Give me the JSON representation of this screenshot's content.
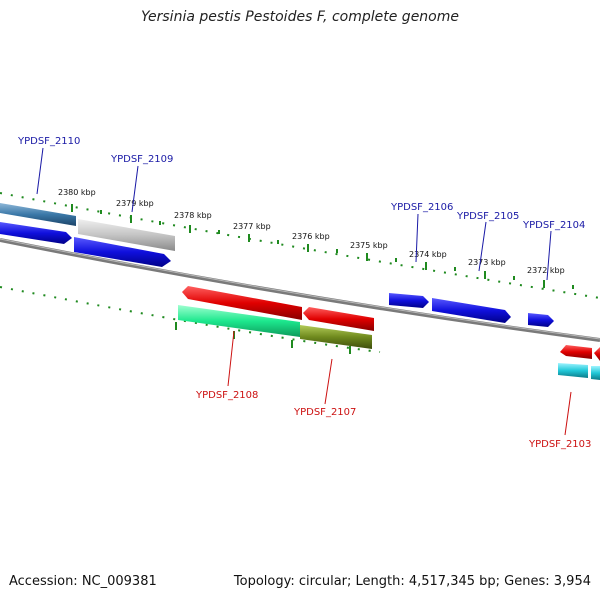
{
  "title": "Yersinia pestis Pestoides F, complete genome",
  "footer": {
    "accession": "Accession: NC_009381",
    "summary": "Topology: circular; Length: 4,517,345 bp; Genes: 3,954"
  },
  "colors": {
    "forward_label": "#1a1aa6",
    "reverse_label": "#cc1111",
    "backbone": "#808080",
    "scale_dots": "#1f8a1f",
    "gene_blue": "#1010dd",
    "gene_red": "#e00000",
    "gene_gray": "#c0c0c0",
    "gene_steelblue": "#3a78a8",
    "gene_green": "#1de88e",
    "gene_olive": "#6f8a1e",
    "gene_cyan": "#21c8d8"
  },
  "scale_labels": [
    "2380 kbp",
    "2379 kbp",
    "2378 kbp",
    "2377 kbp",
    "2376 kbp",
    "2375 kbp",
    "2374 kbp",
    "2373 kbp",
    "2372 kbp"
  ],
  "genes": [
    {
      "name": "YPDSF_2110",
      "strand": "forward",
      "color": "gene_steelblue"
    },
    {
      "name": "YPDSF_2109",
      "strand": "forward",
      "color": "gene_gray"
    },
    {
      "name": "YPDSF_2108",
      "strand": "reverse",
      "color": "gene_green"
    },
    {
      "name": "YPDSF_2107",
      "strand": "reverse",
      "color": "gene_olive"
    },
    {
      "name": "YPDSF_2106",
      "strand": "forward",
      "color": "gene_blue"
    },
    {
      "name": "YPDSF_2105",
      "strand": "forward",
      "color": "gene_blue"
    },
    {
      "name": "YPDSF_2104",
      "strand": "forward",
      "color": "gene_blue"
    },
    {
      "name": "YPDSF_2103",
      "strand": "reverse",
      "color": "gene_cyan"
    }
  ]
}
